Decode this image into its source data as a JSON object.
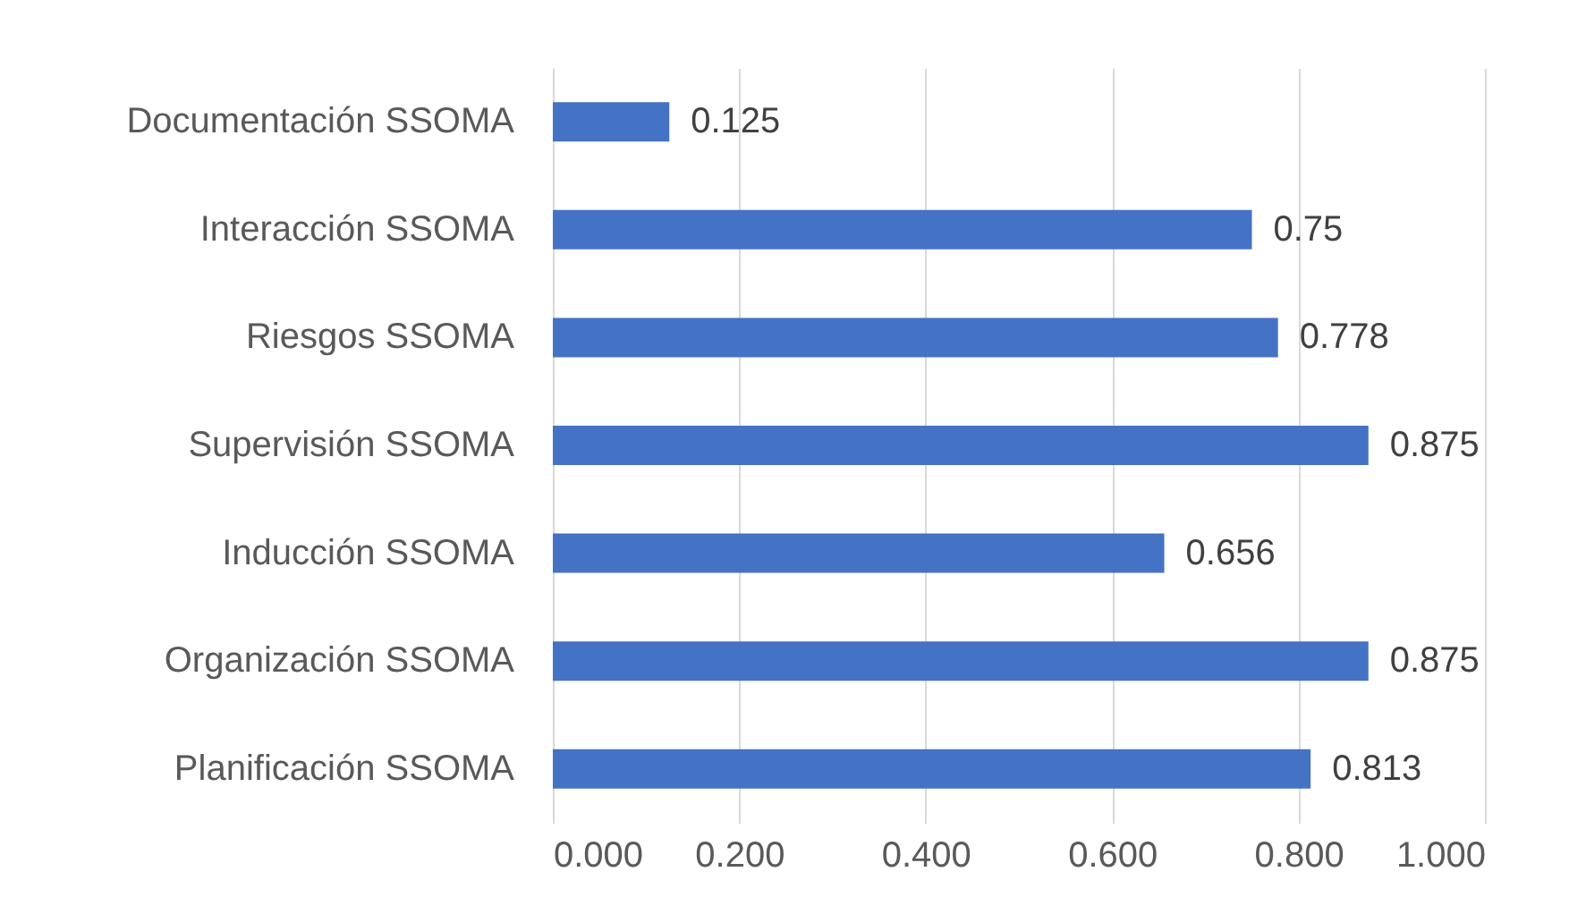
{
  "chart_data": {
    "type": "bar",
    "orientation": "horizontal",
    "categories": [
      "Documentación SSOMA",
      "Interacción SSOMA",
      "Riesgos SSOMA",
      "Supervisión SSOMA",
      "Inducción SSOMA",
      "Organización SSOMA",
      "Planificación SSOMA"
    ],
    "values": [
      0.125,
      0.75,
      0.778,
      0.875,
      0.656,
      0.875,
      0.813
    ],
    "color": "#4472c4",
    "data_labels": true,
    "grid": "x",
    "xlim": [
      0,
      1
    ],
    "xticks": [
      {
        "value": 0,
        "label": "0.000"
      },
      {
        "value": 0.2,
        "label": "0.200"
      },
      {
        "value": 0.4,
        "label": "0.400"
      },
      {
        "value": 0.6,
        "label": "0.600"
      },
      {
        "value": 0.8,
        "label": "0.800"
      },
      {
        "value": 1,
        "label": "1.000"
      }
    ]
  }
}
